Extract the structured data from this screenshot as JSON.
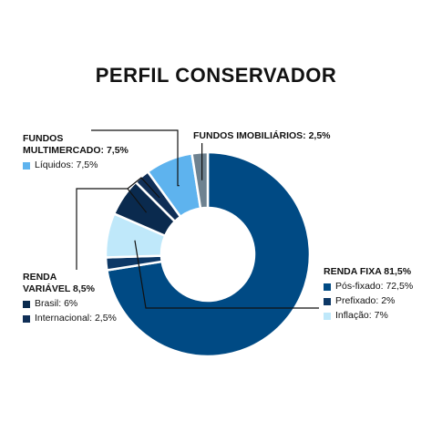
{
  "chart_data": {
    "type": "donut",
    "title": "PERFIL CONSERVADOR",
    "slices": [
      {
        "id": "renda-fixa-pos-fixado",
        "group": "RENDA FIXA",
        "label": "Pós-fixado",
        "value": 72.5,
        "color": "#004a84"
      },
      {
        "id": "renda-fixa-prefixado",
        "group": "RENDA FIXA",
        "label": "Prefixado",
        "value": 2,
        "color": "#0d3866"
      },
      {
        "id": "renda-fixa-inflacao",
        "group": "RENDA FIXA",
        "label": "Inflação",
        "value": 7,
        "color": "#bfe8fa"
      },
      {
        "id": "renda-variavel-brasil",
        "group": "RENDA VARIÁVEL",
        "label": "Brasil",
        "value": 6,
        "color": "#0a2a4e"
      },
      {
        "id": "renda-variavel-internacional",
        "group": "RENDA VARIÁVEL",
        "label": "Internacional",
        "value": 2.5,
        "color": "#102f57"
      },
      {
        "id": "multimercado-liquidos",
        "group": "FUNDOS MULTIMERCADO",
        "label": "Líquidos",
        "value": 7.5,
        "color": "#5eb3ee"
      },
      {
        "id": "imobiliarios",
        "group": "FUNDOS IMOBILIÁRIOS",
        "label": "",
        "value": 2.5,
        "color": "#6e8290"
      }
    ]
  },
  "legend": {
    "renda_fixa": {
      "title": "RENDA FIXA 81,5%",
      "items": [
        {
          "text": "Pós-fixado: 72,5%",
          "color": "#004a84"
        },
        {
          "text": "Prefixado: 2%",
          "color": "#0d3866"
        },
        {
          "text": "Inflação: 7%",
          "color": "#bfe8fa"
        }
      ]
    },
    "renda_variavel": {
      "title_line1": "RENDA",
      "title_line2": "VARIÁVEL 8,5%",
      "items": [
        {
          "text": "Brasil: 6%",
          "color": "#0a2a4e"
        },
        {
          "text": "Internacional: 2,5%",
          "color": "#102f57"
        }
      ]
    },
    "multimercado": {
      "title_line1": "FUNDOS",
      "title_line2": "MULTIMERCADO: 7,5%",
      "items": [
        {
          "text": "Líquidos: 7,5%",
          "color": "#5eb3ee"
        }
      ]
    },
    "imobiliarios": {
      "title": "FUNDOS IMOBILIÁRIOS: 2,5%"
    }
  },
  "colors": {
    "leader_line": "#111111",
    "separator": "#ffffff"
  }
}
